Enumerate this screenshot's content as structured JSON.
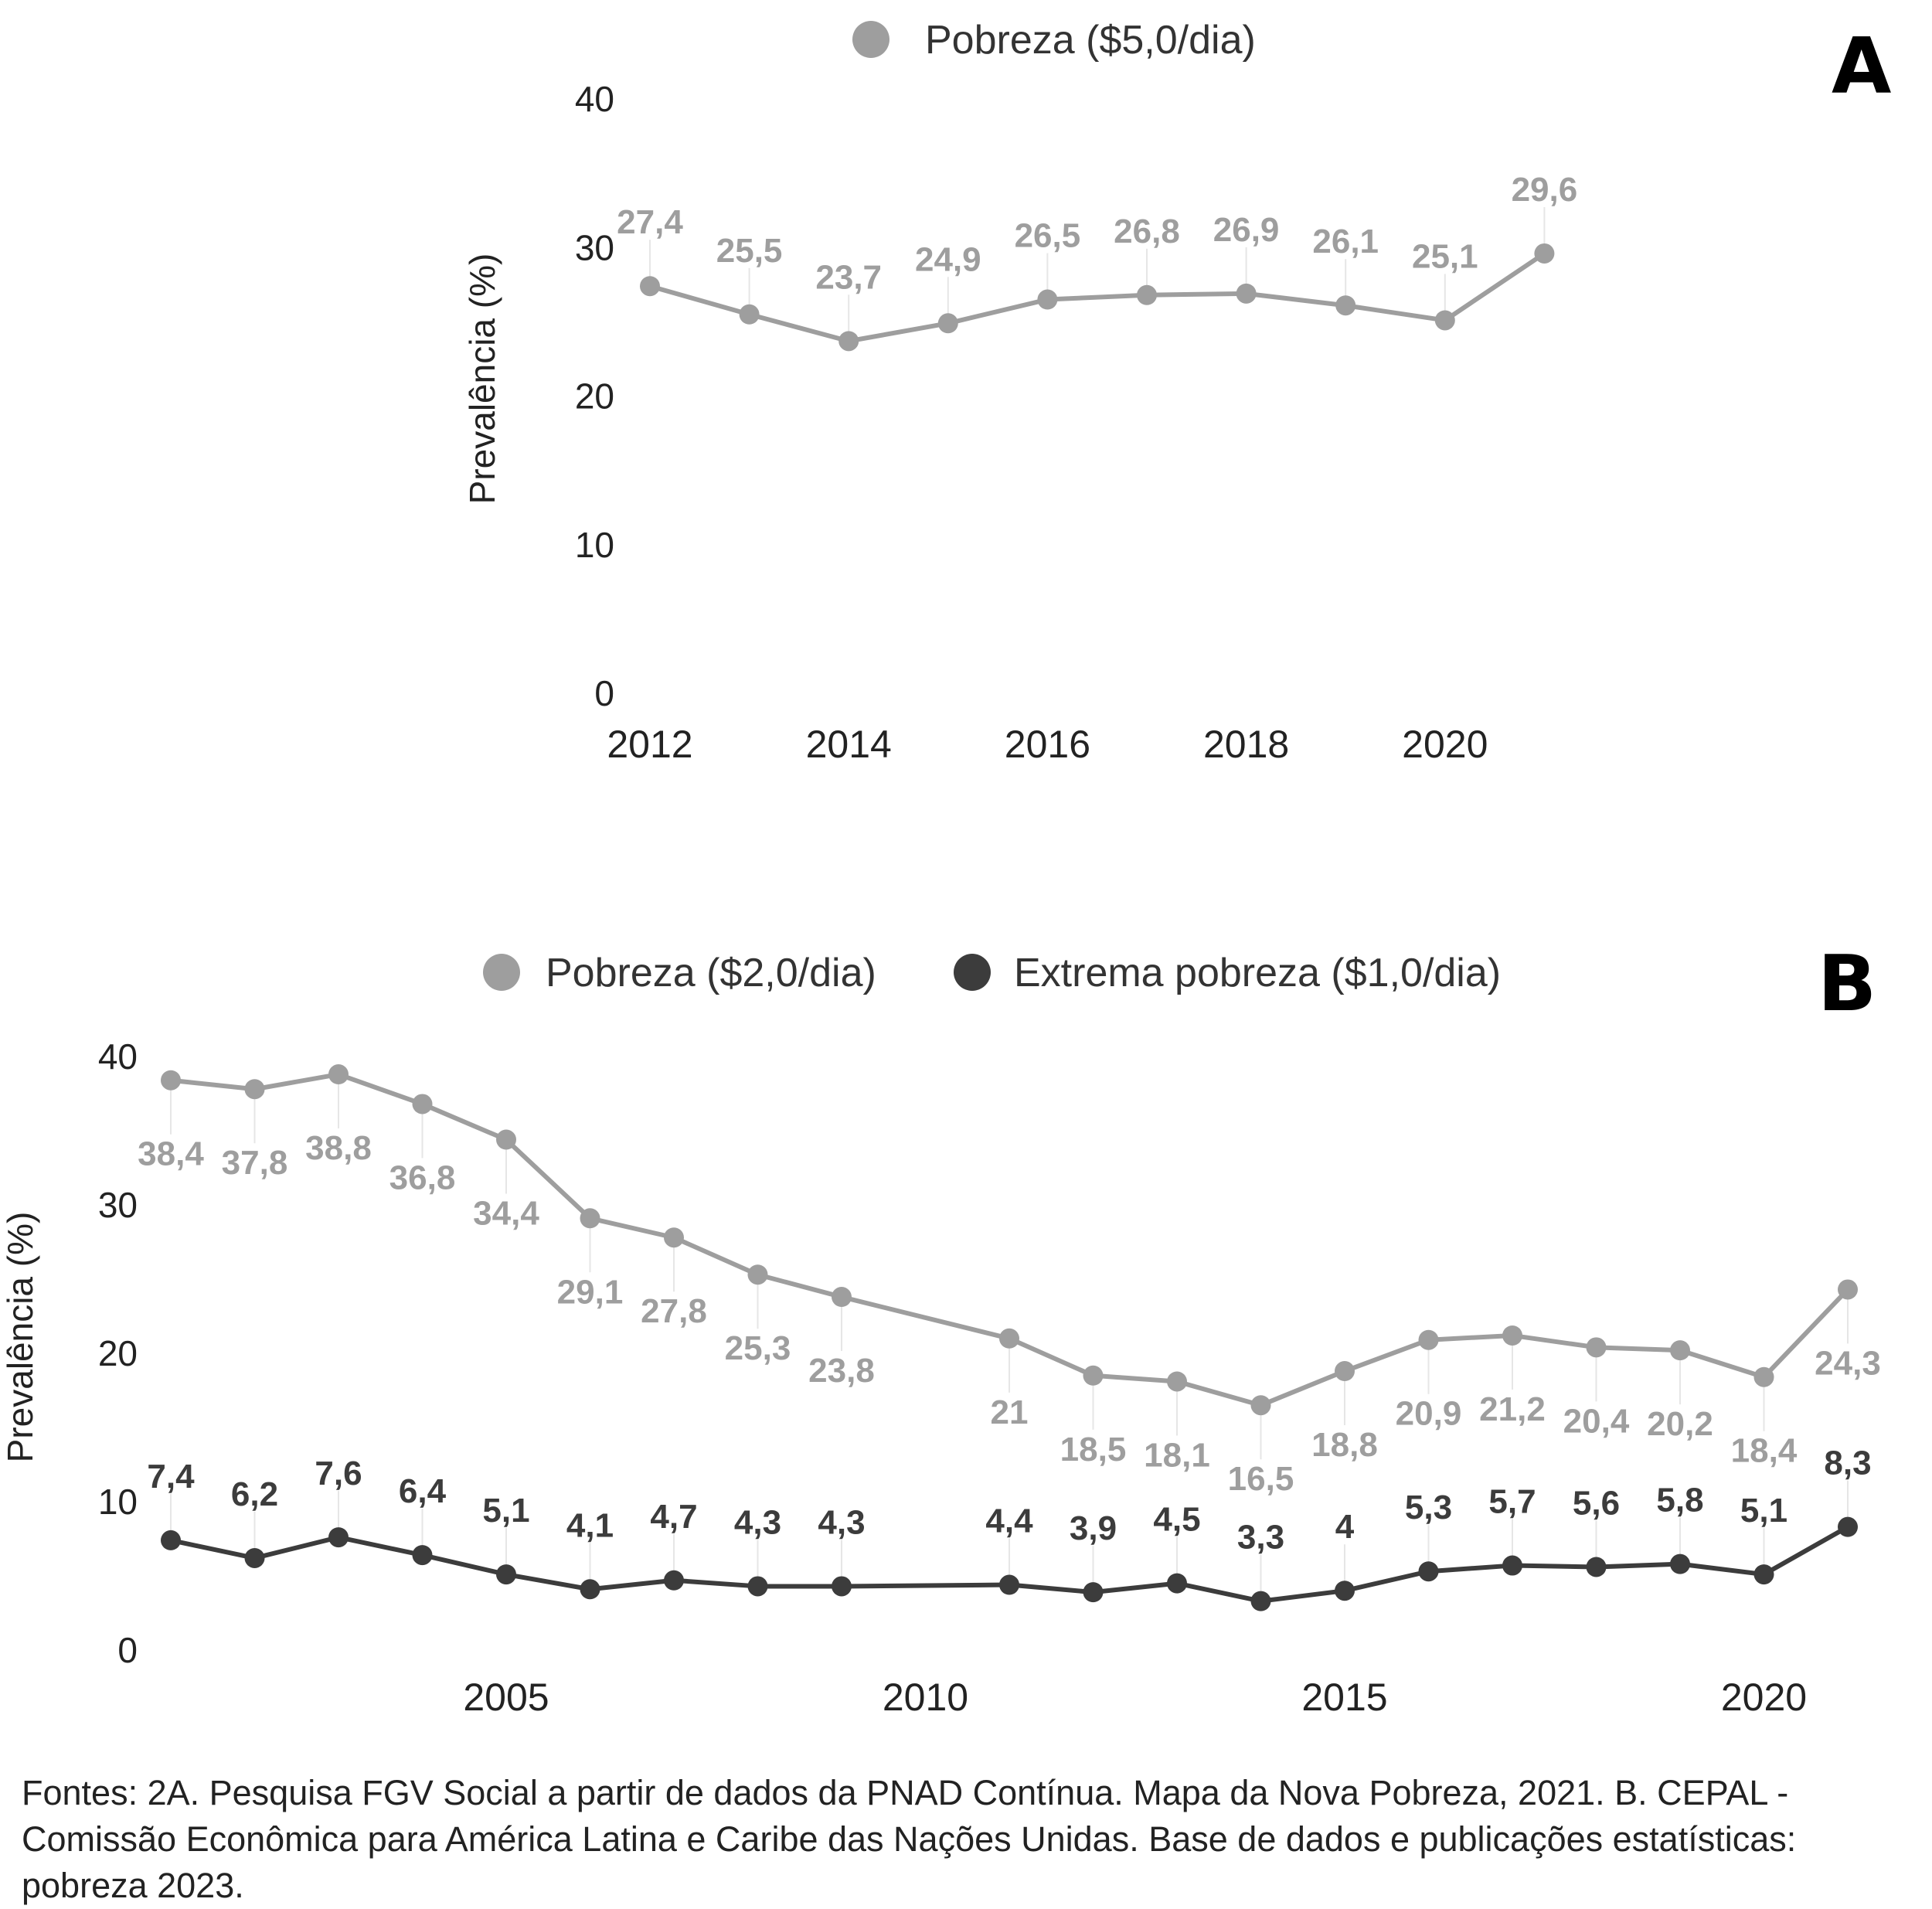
{
  "chart_data": [
    {
      "type": "line",
      "panel_letter": "A",
      "ylabel": "Prevalência (%)",
      "ylim": [
        0,
        40
      ],
      "yticks": [
        0,
        10,
        20,
        30,
        40
      ],
      "xticks": [
        2012,
        2014,
        2016,
        2018,
        2020
      ],
      "x": [
        2012,
        2013,
        2014,
        2015,
        2016,
        2017,
        2018,
        2019,
        2020,
        2021
      ],
      "series": [
        {
          "name": "Pobreza ($5,0/dia)",
          "color": "#9e9e9e",
          "label_position": "above",
          "values": [
            27.4,
            25.5,
            23.7,
            24.9,
            26.5,
            26.8,
            26.9,
            26.1,
            25.1,
            29.6
          ]
        }
      ],
      "legend": "top"
    },
    {
      "type": "line",
      "panel_letter": "B",
      "ylabel": "Prevalência (%)",
      "ylim": [
        0,
        40
      ],
      "yticks": [
        0,
        10,
        20,
        30,
        40
      ],
      "xticks": [
        2005,
        2010,
        2015,
        2020
      ],
      "x": [
        2001,
        2002,
        2003,
        2004,
        2005,
        2006,
        2007,
        2008,
        2009,
        2011,
        2012,
        2013,
        2014,
        2015,
        2016,
        2017,
        2018,
        2019,
        2020,
        2021
      ],
      "series": [
        {
          "name": "Pobreza ($2,0/dia)",
          "color": "#9e9e9e",
          "label_position": "below",
          "values": [
            38.4,
            37.8,
            38.8,
            36.8,
            34.4,
            29.1,
            27.8,
            25.3,
            23.8,
            21,
            18.5,
            18.1,
            16.5,
            18.8,
            20.9,
            21.2,
            20.4,
            20.2,
            18.4,
            24.3
          ]
        },
        {
          "name": "Extrema pobreza ($1,0/dia)",
          "color": "#3c3c3c",
          "label_position": "above",
          "values": [
            7.4,
            6.2,
            7.6,
            6.4,
            5.1,
            4.1,
            4.7,
            4.3,
            4.3,
            4.4,
            3.9,
            4.5,
            3.3,
            4,
            5.3,
            5.7,
            5.6,
            5.8,
            5.1,
            8.3
          ]
        }
      ],
      "legend": "top"
    }
  ],
  "footnote": "Fontes: 2A. Pesquisa FGV Social a partir de dados da PNAD Contínua. Mapa da Nova Pobreza, 2021. B. CEPAL - Comissão Econômica para América Latina e Caribe das Nações Unidas. Base de dados e publicações estatísticas: pobreza 2023."
}
